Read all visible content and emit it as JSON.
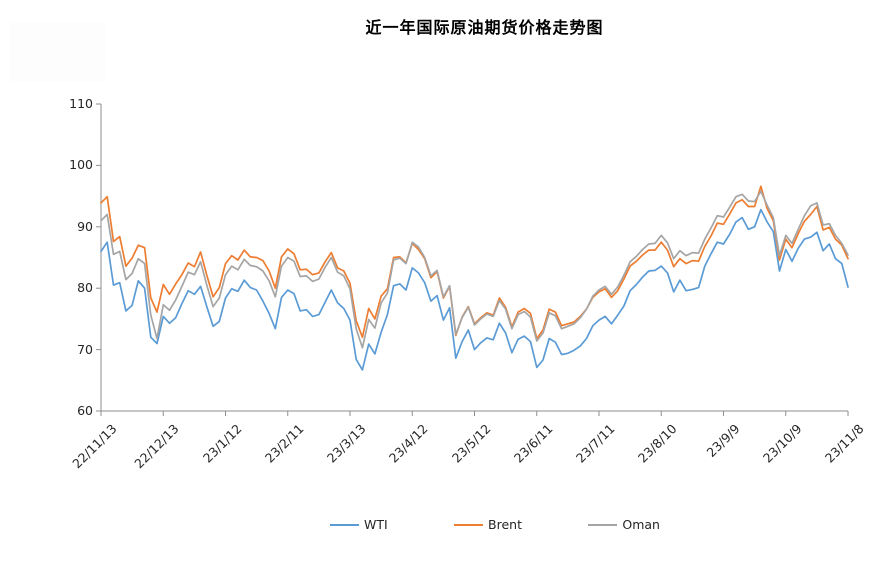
{
  "chart_data": {
    "type": "line",
    "title": "近一年国际原油期货价格走势图",
    "xlabel": "",
    "ylabel": "",
    "ylim": [
      60,
      110
    ],
    "y_ticks": [
      110,
      100,
      90,
      80,
      70,
      60
    ],
    "grid": false,
    "legend_position": "bottom",
    "x_tick_labels": [
      "22/11/13",
      "22/12/13",
      "23/1/12",
      "23/2/11",
      "23/3/13",
      "23/4/12",
      "23/5/12",
      "23/6/11",
      "23/7/11",
      "23/8/10",
      "23/9/9",
      "23/10/9",
      "23/11/8"
    ],
    "points_per_tick": 10,
    "axis_color": "#8e8e8e",
    "text_color": "#262626",
    "series": [
      {
        "name": "WTI",
        "color": "#5B9BD5",
        "values": [
          86.0,
          87.5,
          80.5,
          80.9,
          76.3,
          77.2,
          81.2,
          80.0,
          72.0,
          71.0,
          75.4,
          74.3,
          75.2,
          77.5,
          79.6,
          79.0,
          80.3,
          77.0,
          73.8,
          74.6,
          78.4,
          79.9,
          79.5,
          81.3,
          80.1,
          79.7,
          77.9,
          75.9,
          73.4,
          78.5,
          79.7,
          79.1,
          76.3,
          76.5,
          75.4,
          75.7,
          77.7,
          79.7,
          77.6,
          76.7,
          74.8,
          68.4,
          66.7,
          70.9,
          69.3,
          72.8,
          75.7,
          80.4,
          80.7,
          79.7,
          83.3,
          82.5,
          80.9,
          77.9,
          78.8,
          74.8,
          76.8,
          68.6,
          71.3,
          73.2,
          70.0,
          71.1,
          71.9,
          71.6,
          74.3,
          72.7,
          69.5,
          71.7,
          72.2,
          71.3,
          67.1,
          68.3,
          71.8,
          71.2,
          69.2,
          69.4,
          69.9,
          70.6,
          71.8,
          73.9,
          74.8,
          75.4,
          74.2,
          75.6,
          77.1,
          79.6,
          80.6,
          81.8,
          82.8,
          82.9,
          83.6,
          82.5,
          79.4,
          81.3,
          79.6,
          79.8,
          80.1,
          83.6,
          85.6,
          87.5,
          87.2,
          88.8,
          90.8,
          91.5,
          89.6,
          90.0,
          92.8,
          90.8,
          89.2,
          82.8,
          86.3,
          84.4,
          86.5,
          88.0,
          88.3,
          89.1,
          86.1,
          87.2,
          84.8,
          84.0,
          80.2
        ]
      },
      {
        "name": "Brent",
        "color": "#ED7D31",
        "values": [
          93.9,
          94.9,
          87.6,
          88.4,
          83.6,
          84.9,
          87.0,
          86.6,
          78.4,
          76.1,
          80.6,
          79.0,
          80.7,
          82.2,
          84.1,
          83.5,
          85.9,
          82.1,
          78.6,
          80.1,
          84.0,
          85.3,
          84.6,
          86.2,
          85.1,
          85.0,
          84.5,
          82.8,
          80.0,
          85.1,
          86.4,
          85.6,
          83.0,
          83.1,
          82.2,
          82.5,
          84.3,
          85.8,
          83.3,
          82.8,
          80.8,
          74.7,
          72.0,
          76.7,
          75.0,
          78.7,
          79.9,
          85.0,
          85.1,
          84.1,
          87.3,
          86.3,
          84.8,
          81.7,
          82.7,
          78.4,
          80.3,
          72.3,
          75.3,
          77.0,
          74.2,
          75.2,
          76.0,
          75.6,
          78.4,
          76.9,
          73.7,
          76.1,
          76.7,
          75.9,
          71.8,
          73.2,
          76.6,
          76.1,
          73.9,
          74.2,
          74.5,
          75.4,
          76.6,
          78.5,
          79.4,
          79.9,
          78.5,
          79.6,
          81.5,
          83.6,
          84.4,
          85.4,
          86.2,
          86.2,
          87.5,
          86.2,
          83.5,
          84.8,
          84.0,
          84.5,
          84.4,
          86.8,
          88.5,
          90.6,
          90.4,
          92.1,
          93.9,
          94.4,
          93.3,
          93.3,
          96.6,
          93.0,
          91.0,
          84.6,
          88.0,
          86.6,
          88.9,
          90.9,
          92.0,
          93.3,
          89.5,
          89.9,
          88.0,
          87.0,
          84.8
        ]
      },
      {
        "name": "Oman",
        "color": "#A5A5A5",
        "values": [
          91.0,
          92.0,
          85.5,
          86.0,
          81.4,
          82.4,
          84.8,
          84.0,
          75.6,
          71.8,
          77.3,
          76.4,
          78.1,
          80.3,
          82.6,
          82.2,
          84.3,
          80.5,
          77.0,
          78.4,
          82.2,
          83.6,
          83.0,
          84.7,
          83.7,
          83.5,
          82.8,
          81.2,
          78.6,
          83.6,
          85.0,
          84.4,
          81.9,
          82.0,
          81.1,
          81.5,
          83.4,
          85.0,
          82.6,
          82.0,
          79.9,
          73.4,
          70.3,
          74.9,
          73.5,
          77.6,
          79.2,
          84.6,
          84.9,
          84.0,
          87.5,
          86.7,
          85.0,
          82.0,
          82.9,
          78.6,
          80.4,
          72.5,
          75.2,
          76.9,
          74.0,
          75.0,
          75.8,
          75.4,
          78.0,
          76.6,
          73.4,
          75.7,
          76.2,
          75.3,
          71.4,
          72.7,
          76.0,
          75.5,
          73.4,
          73.8,
          74.2,
          75.2,
          76.6,
          78.7,
          79.7,
          80.3,
          79.0,
          80.2,
          82.1,
          84.3,
          85.2,
          86.3,
          87.2,
          87.3,
          88.6,
          87.4,
          84.8,
          86.1,
          85.3,
          85.8,
          85.7,
          88.0,
          89.8,
          91.8,
          91.6,
          93.2,
          94.9,
          95.3,
          94.2,
          94.1,
          95.8,
          93.5,
          91.5,
          85.3,
          88.6,
          87.3,
          89.6,
          91.8,
          93.4,
          93.9,
          90.3,
          90.5,
          88.6,
          87.3,
          85.4
        ]
      }
    ]
  }
}
